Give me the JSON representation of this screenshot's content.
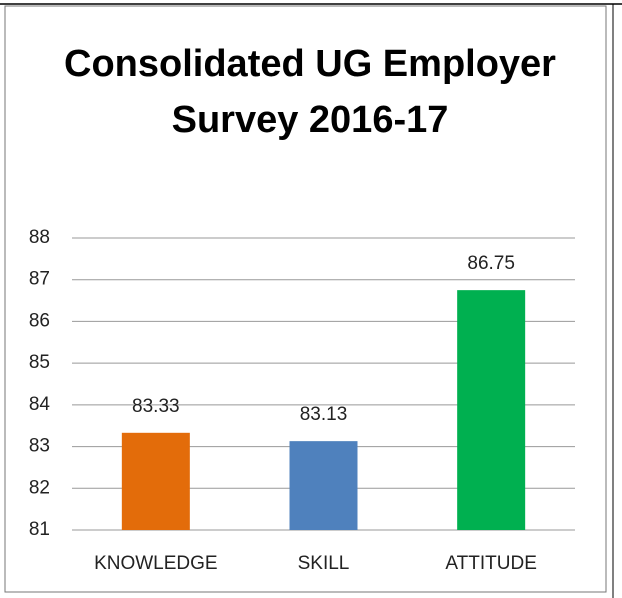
{
  "chart_data": {
    "type": "bar",
    "title": "Consolidated UG Employer Survey 2016-17",
    "categories": [
      "KNOWLEDGE",
      "SKILL",
      "ATTITUDE"
    ],
    "values": [
      83.33,
      83.13,
      86.75
    ],
    "colors": [
      "#e36c0a",
      "#4f81bd",
      "#00b050"
    ],
    "ylim": [
      81,
      88
    ],
    "yticks": [
      81,
      82,
      83,
      84,
      85,
      86,
      87,
      88
    ],
    "grid": true
  }
}
